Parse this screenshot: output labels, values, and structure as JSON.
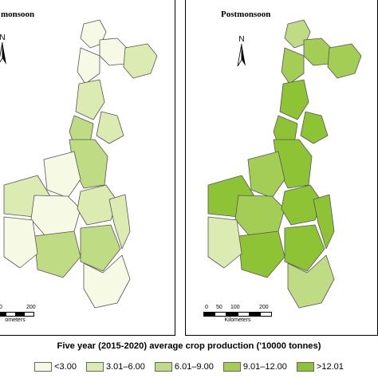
{
  "left_panel": {
    "title": "monsoon",
    "north": "N",
    "scale_ticks": [
      "0",
      "200"
    ],
    "scale_unit": "ometers",
    "region_classes": [
      "c1",
      "c1",
      "c2",
      "c1",
      "c2",
      "c3",
      "c2",
      "c3",
      "c1",
      "c2",
      "c1",
      "c2",
      "c3",
      "c1",
      "c3",
      "c2",
      "c1"
    ]
  },
  "right_panel": {
    "title": "Postmonsoon",
    "north": "N",
    "scale_ticks": [
      "0",
      "50",
      "100",
      "200"
    ],
    "scale_unit": "Kilometers",
    "region_classes": [
      "c3",
      "c4",
      "c4",
      "c4",
      "c5",
      "c5",
      "c5",
      "c5",
      "c4",
      "c5",
      "c4",
      "c5",
      "c5",
      "c2",
      "c5",
      "c5",
      "c3"
    ]
  },
  "legend": {
    "title": "Five year (2015-2020) average crop production ('10000 tonnes)",
    "items": [
      {
        "label": "<3.00",
        "color": "#f6f9e3"
      },
      {
        "label": "3.01–6.00",
        "color": "#dcebb1"
      },
      {
        "label": "6.01–9.00",
        "color": "#bfdc84"
      },
      {
        "label": "9.01–12.00",
        "color": "#a3cd55"
      },
      {
        "label": ">12.01",
        "color": "#8ec336"
      }
    ]
  }
}
